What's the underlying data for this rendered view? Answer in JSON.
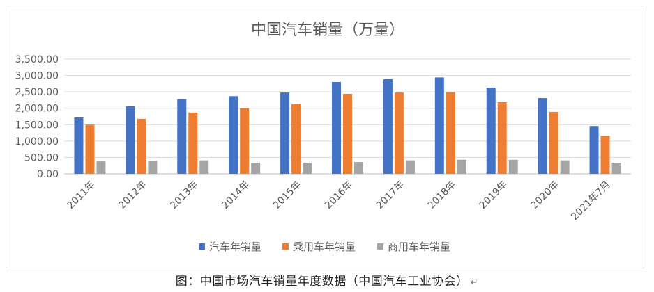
{
  "chart_data": {
    "type": "bar",
    "title": "中国汽车销量（万量）",
    "categories": [
      "2011年",
      "2012年",
      "2013年",
      "2014年",
      "2015年",
      "2016年",
      "2017年",
      "2018年",
      "2019年",
      "2020年",
      "2021年7月"
    ],
    "series": [
      {
        "name": "汽车年销量",
        "color": "#4472C4",
        "values": [
          1720,
          2060,
          2280,
          2370,
          2480,
          2800,
          2890,
          2940,
          2630,
          2310,
          1460
        ]
      },
      {
        "name": "乘用车年销量",
        "color": "#ED7D31",
        "values": [
          1500,
          1680,
          1870,
          2000,
          2130,
          2440,
          2480,
          2490,
          2190,
          1890,
          1160
        ]
      },
      {
        "name": "商用车年销量",
        "color": "#A5A5A5",
        "values": [
          380,
          400,
          410,
          340,
          340,
          360,
          410,
          430,
          430,
          410,
          340
        ]
      }
    ],
    "yticks": [
      "0.00",
      "500.00",
      "1,000.00",
      "1,500.00",
      "2,000.00",
      "2,500.00",
      "3,000.00",
      "3,500.00"
    ],
    "ylim": [
      0,
      3500
    ],
    "grid": true,
    "legend": "bottom"
  },
  "caption": "图：中国市场汽车销量年度数据（中国汽车工业协会）",
  "caption_mark": "↵"
}
